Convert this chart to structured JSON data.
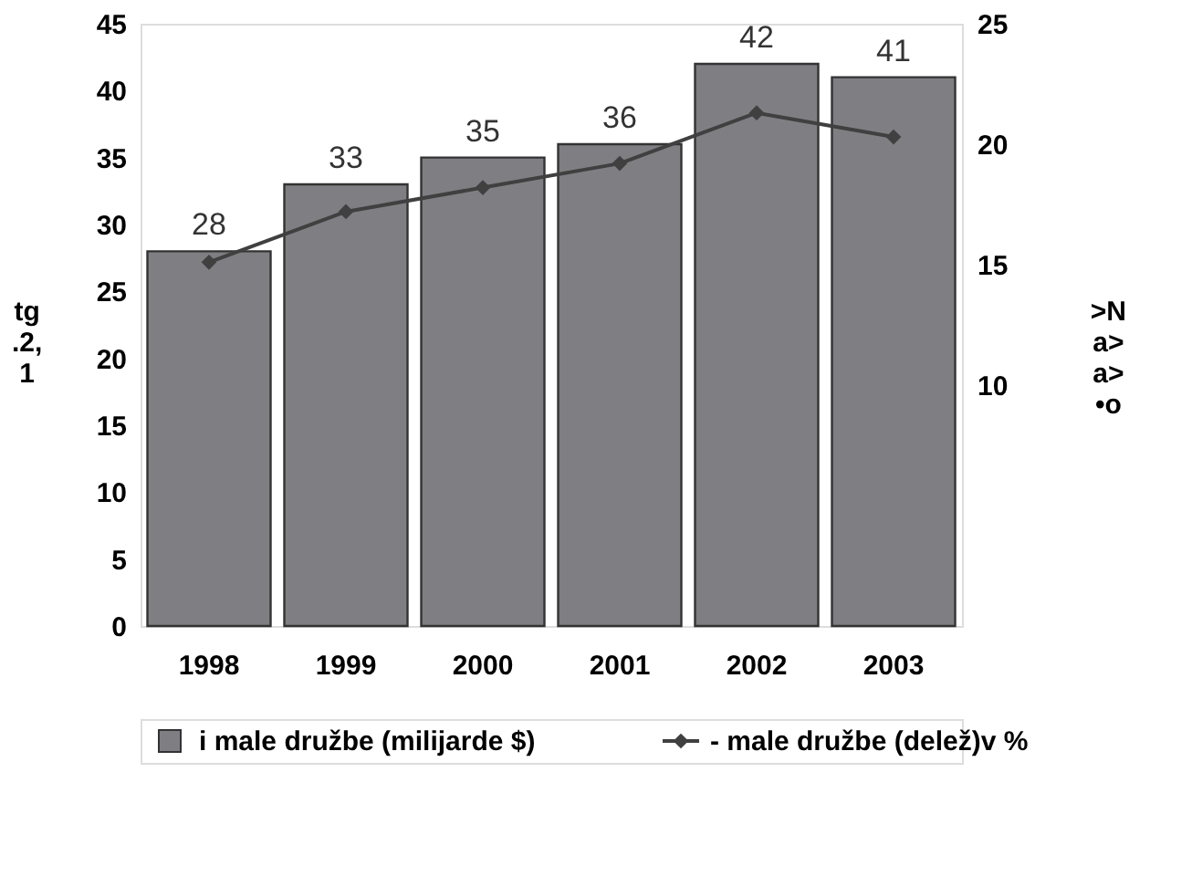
{
  "chart_data": {
    "type": "bar",
    "categories": [
      "1998",
      "1999",
      "2000",
      "2001",
      "2002",
      "2003"
    ],
    "ylabel": "tg .2, 1",
    "y2label": ">N a> a> •o",
    "series": [
      {
        "name": "i male družbe (milijarde $)",
        "color": "#7f7f83",
        "values": [
          28,
          33,
          35,
          36,
          42,
          41
        ],
        "value_labels": [
          "28",
          "33",
          "35",
          "36",
          "42",
          "41"
        ]
      },
      {
        "name": "- male družbe (delež)v %",
        "type": "line",
        "axis": "y2",
        "color": "#404040",
        "values": [
          15.1,
          17.2,
          18.2,
          19.2,
          21.3,
          20.3
        ]
      }
    ],
    "marker": "diamond",
    "line_style": "solid",
    "ylim": [
      0,
      45
    ],
    "yticks": [
      0,
      5,
      10,
      15,
      20,
      25,
      30,
      35,
      40,
      45
    ],
    "y2lim": [
      0,
      25
    ],
    "y2ticks": [
      10,
      15,
      20,
      25
    ],
    "grid": false,
    "legend": "bottom"
  }
}
